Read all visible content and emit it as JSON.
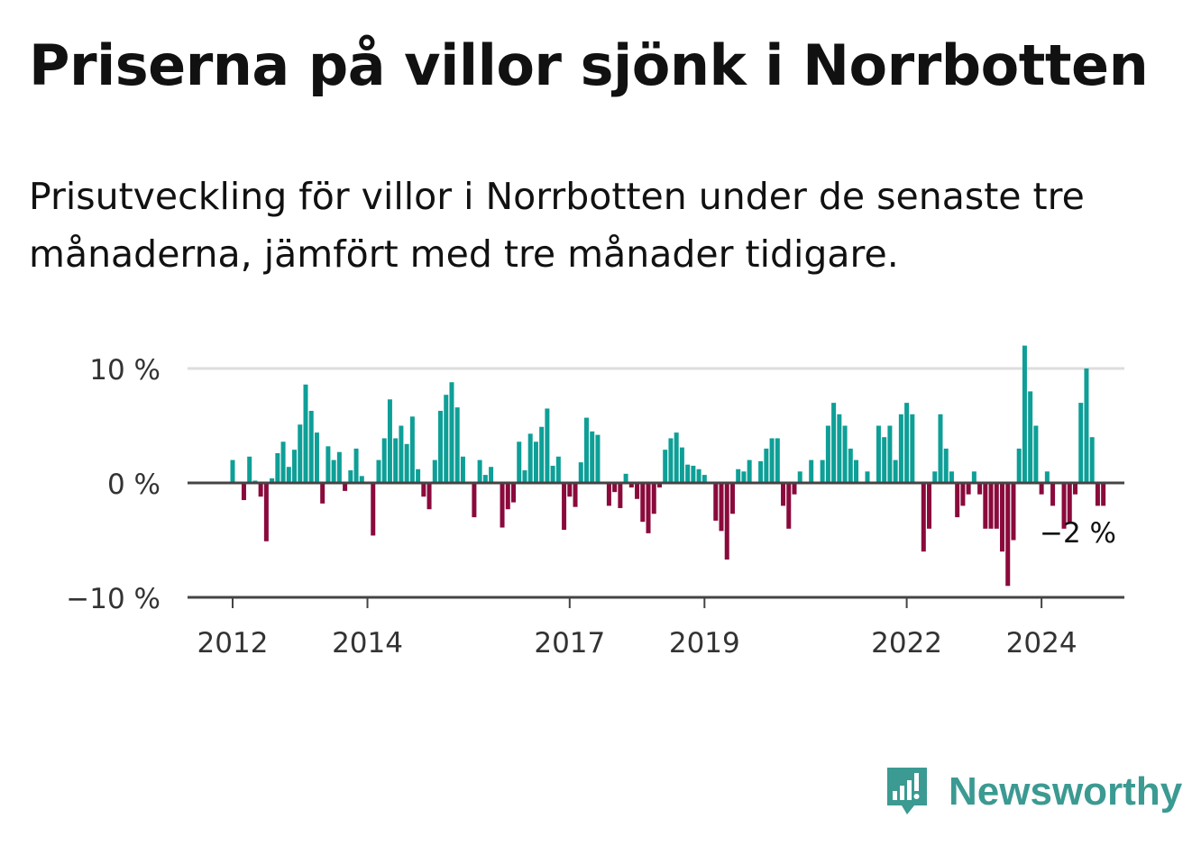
{
  "title": "Priserna på villor sjönk i Norrbotten",
  "subtitle": "Prisutveckling för villor i Norrbotten under de senaste tre månaderna, jämfört med tre månader tidigare.",
  "brand": "Newsworthy",
  "colors": {
    "positive": "#0e9f97",
    "negative": "#8a0a3c",
    "grid": "#dddddd",
    "axis": "#555555",
    "text": "#333333",
    "brand": "#3b9a92"
  },
  "chart_data": {
    "type": "bar",
    "title": "Priserna på villor sjönk i Norrbotten",
    "xlabel": "",
    "ylabel": "",
    "ylim": [
      -10,
      10
    ],
    "y_ticks": [
      10,
      0,
      -10
    ],
    "y_tick_labels": [
      "10 %",
      "0 %",
      "−10 %"
    ],
    "x_start_year": 2012,
    "x_ticks": [
      2012,
      2014,
      2017,
      2019,
      2022,
      2024
    ],
    "x_tick_labels": [
      "2012",
      "2014",
      "2017",
      "2019",
      "2022",
      "2024"
    ],
    "last_value_label": "−2 %",
    "values": [
      2,
      0,
      -1.5,
      2.3,
      0.2,
      -1.2,
      -5.1,
      0.4,
      2.6,
      3.6,
      1.4,
      2.9,
      5.1,
      8.6,
      6.3,
      4.4,
      -1.8,
      3.2,
      2,
      2.7,
      -0.7,
      1.1,
      3,
      0.6,
      0,
      -4.6,
      2,
      3.9,
      7.3,
      3.9,
      5,
      3.4,
      5.8,
      1.2,
      -1.2,
      -2.3,
      2,
      6.3,
      7.7,
      8.8,
      6.6,
      2.3,
      0,
      -3,
      2,
      0.7,
      1.4,
      0,
      -3.9,
      -2.3,
      -1.7,
      3.6,
      1.1,
      4.3,
      3.6,
      4.9,
      6.5,
      1.5,
      2.3,
      -4.1,
      -1.2,
      -2.1,
      1.8,
      5.7,
      4.5,
      4.2,
      0,
      -2,
      -0.8,
      -2.2,
      0.8,
      -0.4,
      -1.4,
      -3.4,
      -4.4,
      -2.7,
      -0.4,
      2.9,
      3.9,
      4.4,
      3.1,
      1.6,
      1.5,
      1.2,
      0.7,
      0,
      -3.3,
      -4.2,
      -6.7,
      -2.7,
      1.2,
      1,
      2,
      0,
      1.9,
      3,
      3.9,
      3.9,
      -2,
      -4,
      -1,
      1,
      0,
      2,
      0,
      2,
      5,
      7,
      6,
      5,
      3,
      2,
      0,
      1,
      0,
      5,
      4,
      5,
      2,
      6,
      7,
      6,
      0,
      -6,
      -4,
      1,
      6,
      3,
      1,
      -3,
      -2,
      -1,
      1,
      -1,
      -4,
      -4,
      -4,
      -6,
      -9,
      -5,
      3,
      12,
      8,
      5,
      -1,
      1,
      -2,
      0,
      -4,
      -3.5,
      -1,
      7,
      10,
      4,
      -2,
      -2
    ]
  }
}
